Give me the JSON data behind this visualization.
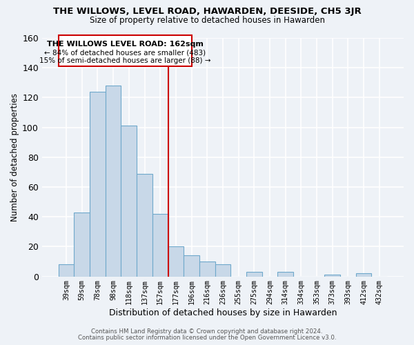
{
  "title": "THE WILLOWS, LEVEL ROAD, HAWARDEN, DEESIDE, CH5 3JR",
  "subtitle": "Size of property relative to detached houses in Hawarden",
  "xlabel": "Distribution of detached houses by size in Hawarden",
  "ylabel": "Number of detached properties",
  "bar_labels": [
    "39sqm",
    "59sqm",
    "78sqm",
    "98sqm",
    "118sqm",
    "137sqm",
    "157sqm",
    "177sqm",
    "196sqm",
    "216sqm",
    "236sqm",
    "255sqm",
    "275sqm",
    "294sqm",
    "314sqm",
    "334sqm",
    "353sqm",
    "373sqm",
    "393sqm",
    "412sqm",
    "432sqm"
  ],
  "bar_values": [
    8,
    43,
    124,
    128,
    101,
    69,
    42,
    20,
    14,
    10,
    8,
    0,
    3,
    0,
    3,
    0,
    0,
    1,
    0,
    2,
    0
  ],
  "bar_color": "#c8d8e8",
  "bar_edge_color": "#6ea8cb",
  "vline_x_idx": 6.5,
  "vline_color": "#cc0000",
  "ylim": [
    0,
    160
  ],
  "yticks": [
    0,
    20,
    40,
    60,
    80,
    100,
    120,
    140,
    160
  ],
  "annotation_title": "THE WILLOWS LEVEL ROAD: 162sqm",
  "annotation_line1": "← 84% of detached houses are smaller (483)",
  "annotation_line2": "15% of semi-detached houses are larger (88) →",
  "annotation_box_color": "#ffffff",
  "annotation_box_edge": "#cc0000",
  "footer1": "Contains HM Land Registry data © Crown copyright and database right 2024.",
  "footer2": "Contains public sector information licensed under the Open Government Licence v3.0.",
  "background_color": "#eef2f7",
  "grid_color": "#ffffff"
}
